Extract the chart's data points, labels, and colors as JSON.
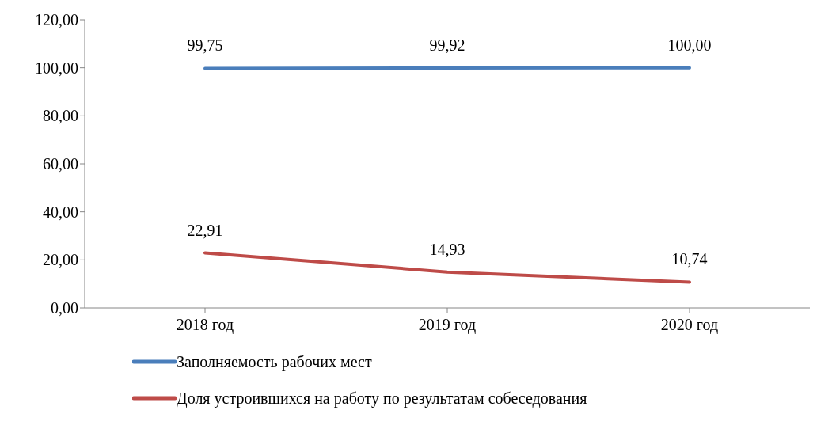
{
  "chart_data": {
    "type": "line",
    "categories": [
      "2018 год",
      "2019 год",
      "2020 год"
    ],
    "series": [
      {
        "name": "Заполняемость рабочих мест",
        "color": "#4a7ebb",
        "values": [
          99.75,
          99.92,
          100.0
        ],
        "value_labels": [
          "99,75",
          "99,92",
          "100,00"
        ]
      },
      {
        "name": "Доля устроившихся на работу по результатам собеседования",
        "color": "#be4b48",
        "values": [
          22.91,
          14.93,
          10.74
        ],
        "value_labels": [
          "22,91",
          "14,93",
          "10,74"
        ]
      }
    ],
    "ylim": [
      0,
      120
    ],
    "yticks": [
      {
        "value": 0,
        "label": "0,00"
      },
      {
        "value": 20,
        "label": "20,00"
      },
      {
        "value": 40,
        "label": "40,00"
      },
      {
        "value": 60,
        "label": "60,00"
      },
      {
        "value": 80,
        "label": "80,00"
      },
      {
        "value": 100,
        "label": "100,00"
      },
      {
        "value": 120,
        "label": "120,00"
      }
    ],
    "grid": false,
    "legend": "bottom",
    "marker": "none",
    "line_style": "solid"
  }
}
